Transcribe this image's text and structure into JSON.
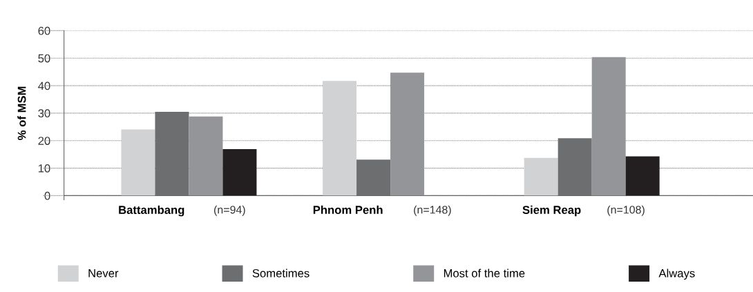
{
  "chart_data": {
    "type": "bar",
    "ylabel": "% of MSM",
    "categories": [
      "Battambang (n=94)",
      "Phnom Penh (n=148)",
      "Siem Reap (n=108)"
    ],
    "series": [
      {
        "name": "Never",
        "color": "#d1d2d4",
        "values": [
          24.1,
          41.7,
          13.7
        ]
      },
      {
        "name": "Sometimes",
        "color": "#6d6e70",
        "values": [
          30.5,
          13.1,
          20.9
        ]
      },
      {
        "name": "Most of the time",
        "color": "#939598",
        "values": [
          28.8,
          44.7,
          50.4
        ]
      },
      {
        "name": "Always",
        "color": "#231f20",
        "values": [
          16.9,
          null,
          14.3
        ]
      }
    ],
    "ylim": [
      0,
      60
    ],
    "yticks": [
      0,
      10,
      20,
      30,
      40,
      50,
      60
    ],
    "grid": "y",
    "legend": "bottom"
  }
}
